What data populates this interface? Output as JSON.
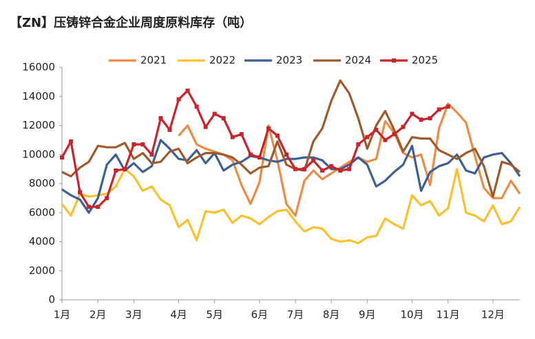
{
  "chart_data": {
    "type": "line",
    "title": "【ZN】压铸锌合金企业周度原料库存（吨）",
    "categories": [
      "1月",
      null,
      null,
      null,
      "2月",
      null,
      null,
      null,
      "3月",
      null,
      null,
      null,
      null,
      "4月",
      null,
      null,
      null,
      "5月",
      null,
      null,
      null,
      null,
      "6月",
      null,
      null,
      null,
      "7月",
      null,
      null,
      null,
      "8月",
      null,
      null,
      null,
      "9月",
      null,
      null,
      null,
      null,
      "10月",
      null,
      null,
      null,
      "11月",
      null,
      null,
      null,
      null,
      "12月",
      null,
      null,
      null
    ],
    "series": [
      {
        "name": "2021",
        "color": "#ed8b45",
        "values": [
          null,
          null,
          null,
          null,
          null,
          null,
          null,
          null,
          null,
          null,
          null,
          null,
          null,
          11300,
          12000,
          10700,
          10400,
          10200,
          10000,
          9600,
          7900,
          6600,
          8100,
          12000,
          9600,
          6600,
          5800,
          8200,
          8900,
          8300,
          8700,
          9100,
          9500,
          9800,
          9500,
          9700,
          12300,
          11500,
          10100,
          9800,
          10000,
          7900,
          11800,
          13500,
          12900,
          12200,
          9900,
          7700,
          7000,
          7000,
          8200,
          7300
        ]
      },
      {
        "name": "2022",
        "color": "#fbc12c",
        "values": [
          6600,
          5800,
          7300,
          7100,
          7200,
          7300,
          7800,
          9000,
          8500,
          7500,
          7800,
          6900,
          6500,
          5000,
          5500,
          4100,
          6100,
          6000,
          6200,
          5300,
          5800,
          5600,
          5200,
          5700,
          6100,
          6200,
          5400,
          4700,
          5000,
          4900,
          4200,
          4000,
          4100,
          3900,
          4300,
          4400,
          5600,
          5200,
          4900,
          7200,
          6500,
          6800,
          5800,
          6300,
          9000,
          6000,
          5800,
          5400,
          6500,
          5200,
          5400,
          6400
        ]
      },
      {
        "name": "2023",
        "color": "#3c5f95",
        "values": [
          7600,
          7200,
          6900,
          6000,
          7000,
          9300,
          10000,
          8900,
          9400,
          8800,
          9200,
          11000,
          10400,
          9700,
          9600,
          10300,
          9400,
          10100,
          8900,
          9300,
          9500,
          9900,
          9800,
          9600,
          9500,
          9700,
          9700,
          9800,
          9800,
          9600,
          9000,
          9000,
          9300,
          9800,
          9300,
          7800,
          8200,
          8800,
          9300,
          10600,
          7500,
          8800,
          9200,
          9400,
          10000,
          8900,
          8700,
          9800,
          10000,
          10100,
          9400,
          8500
        ]
      },
      {
        "name": "2024",
        "color": "#9e5a2a",
        "values": [
          8800,
          8500,
          9100,
          9500,
          10600,
          10500,
          10500,
          10800,
          9700,
          10100,
          9400,
          9500,
          10200,
          10400,
          9400,
          9800,
          10100,
          10100,
          10000,
          9800,
          9300,
          8700,
          9100,
          9200,
          10900,
          9300,
          9000,
          8900,
          10900,
          11800,
          13700,
          15100,
          14200,
          12500,
          10400,
          12000,
          13000,
          11700,
          10200,
          11200,
          11100,
          11100,
          10300,
          10000,
          9700,
          10100,
          10400,
          9200,
          7100,
          9500,
          9300,
          8800
        ]
      },
      {
        "name": "2025",
        "color": "#cc2229",
        "marker": "square",
        "values": [
          9800,
          10900,
          7400,
          6400,
          6400,
          7000,
          8900,
          9000,
          10700,
          10700,
          10000,
          12500,
          11700,
          13800,
          14400,
          13300,
          11900,
          12800,
          12500,
          11200,
          11400,
          10000,
          9800,
          11800,
          11300,
          10000,
          9000,
          9000,
          9600,
          8900,
          9200,
          8900,
          9000,
          10700,
          11200,
          11700,
          11000,
          11400,
          11900,
          12800,
          12400,
          12500,
          13100,
          13300,
          null,
          null,
          null,
          null,
          null,
          null,
          null,
          null
        ]
      }
    ],
    "ylim": [
      0,
      16000
    ],
    "yticks": [
      0,
      2000,
      4000,
      6000,
      8000,
      10000,
      12000,
      14000,
      16000
    ],
    "legend": "top"
  }
}
